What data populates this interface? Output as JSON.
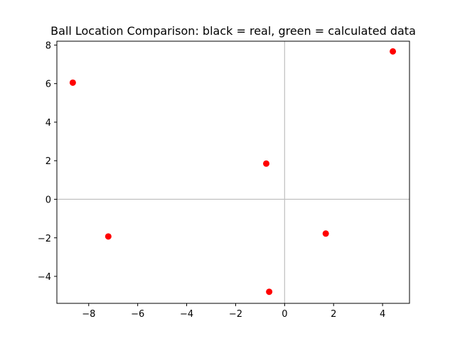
{
  "chart_data": {
    "type": "scatter",
    "title": "Ball Location Comparison: black = real, green = calculated data",
    "xlabel": "",
    "ylabel": "",
    "xlim": [
      -9.3,
      5.1
    ],
    "ylim": [
      -5.4,
      8.2
    ],
    "xticks": [
      -8,
      -6,
      -4,
      -2,
      0,
      2,
      4
    ],
    "yticks": [
      -4,
      -2,
      0,
      2,
      4,
      6,
      8
    ],
    "grid": false,
    "reference_lines": {
      "x": 0,
      "y": 0,
      "color": "#c0c0c0"
    },
    "series": [
      {
        "color": "#ff0000",
        "points": [
          {
            "x": -8.65,
            "y": 6.05
          },
          {
            "x": -7.2,
            "y": -1.93
          },
          {
            "x": -0.75,
            "y": 1.85
          },
          {
            "x": -0.63,
            "y": -4.8
          },
          {
            "x": 1.68,
            "y": -1.78
          },
          {
            "x": 4.42,
            "y": 7.67
          }
        ]
      }
    ]
  }
}
